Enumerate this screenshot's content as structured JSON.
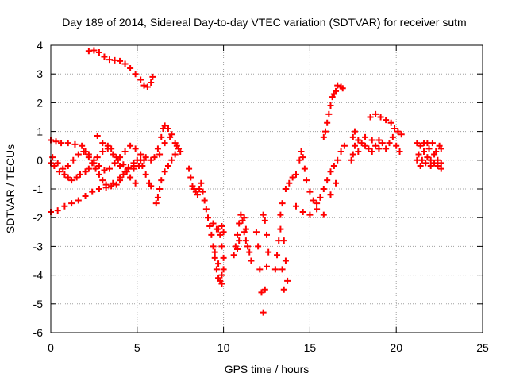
{
  "chart_data": {
    "type": "scatter",
    "title": "Day 189 of 2014, Sidereal Day-to-day VTEC variation (SDTVAR) for receiver sutm",
    "xlabel": "GPS time / hours",
    "ylabel": "SDTVAR / TECUs",
    "xlim": [
      0,
      25
    ],
    "ylim": [
      -6,
      4
    ],
    "xticks": [
      "0",
      "5",
      "10",
      "15",
      "20",
      "25"
    ],
    "yticks": [
      "-6",
      "-5",
      "-4",
      "-3",
      "-2",
      "-1",
      "0",
      "1",
      "2",
      "3",
      "4"
    ],
    "grid": true,
    "marker": "plus",
    "color": "#ff0000",
    "series": [
      {
        "name": "",
        "points": [
          [
            0.0,
            -0.1
          ],
          [
            0.2,
            -0.2
          ],
          [
            0.5,
            -0.4
          ],
          [
            0.8,
            -0.5
          ],
          [
            1.0,
            -0.6
          ],
          [
            1.2,
            -0.7
          ],
          [
            1.5,
            -0.6
          ],
          [
            1.7,
            -0.5
          ],
          [
            2.0,
            -0.4
          ],
          [
            2.2,
            -0.3
          ],
          [
            2.5,
            -0.1
          ],
          [
            2.7,
            0.1
          ],
          [
            3.0,
            0.3
          ],
          [
            3.3,
            0.5
          ],
          [
            3.5,
            0.4
          ],
          [
            3.8,
            0.1
          ],
          [
            4.0,
            -0.2
          ],
          [
            4.3,
            -0.4
          ],
          [
            4.6,
            -0.6
          ],
          [
            4.9,
            -0.8
          ]
        ]
      },
      {
        "name": "",
        "points": [
          [
            0.0,
            0.7
          ],
          [
            0.3,
            0.65
          ],
          [
            0.6,
            0.6
          ],
          [
            1.0,
            0.6
          ],
          [
            1.4,
            0.55
          ],
          [
            1.8,
            0.5
          ],
          [
            2.0,
            0.3
          ],
          [
            2.2,
            0.1
          ],
          [
            2.4,
            -0.1
          ],
          [
            2.6,
            -0.3
          ],
          [
            2.8,
            -0.5
          ],
          [
            3.0,
            -0.7
          ],
          [
            3.2,
            -0.85
          ],
          [
            3.5,
            -0.9
          ],
          [
            3.8,
            -0.85
          ],
          [
            4.0,
            -0.7
          ],
          [
            4.2,
            -0.5
          ],
          [
            4.5,
            -0.3
          ],
          [
            4.8,
            -0.1
          ],
          [
            5.0,
            0.0
          ],
          [
            5.3,
            -0.2
          ],
          [
            5.5,
            -0.5
          ],
          [
            5.7,
            -0.8
          ],
          [
            5.8,
            -0.9
          ]
        ]
      },
      {
        "name": "",
        "points": [
          [
            0.0,
            -1.8
          ],
          [
            0.4,
            -1.75
          ],
          [
            0.8,
            -1.6
          ],
          [
            1.2,
            -1.5
          ],
          [
            1.6,
            -1.4
          ],
          [
            2.0,
            -1.25
          ],
          [
            2.4,
            -1.1
          ],
          [
            2.8,
            -1.0
          ],
          [
            3.2,
            -0.95
          ],
          [
            3.6,
            -0.8
          ],
          [
            4.0,
            -0.6
          ],
          [
            4.4,
            -0.4
          ],
          [
            4.8,
            -0.2
          ],
          [
            5.2,
            0.0
          ],
          [
            5.5,
            0.1
          ],
          [
            5.8,
            0.0
          ]
        ]
      },
      {
        "name": "",
        "points": [
          [
            0.1,
            0.1
          ],
          [
            0.4,
            -0.1
          ],
          [
            0.7,
            -0.3
          ],
          [
            1.0,
            -0.2
          ],
          [
            1.3,
            0.0
          ],
          [
            1.6,
            0.2
          ],
          [
            1.9,
            0.3
          ],
          [
            2.2,
            0.2
          ],
          [
            2.5,
            0.0
          ],
          [
            2.8,
            -0.2
          ],
          [
            3.1,
            -0.35
          ],
          [
            3.4,
            -0.3
          ],
          [
            3.7,
            -0.1
          ],
          [
            4.0,
            0.1
          ],
          [
            4.3,
            0.3
          ],
          [
            4.6,
            0.5
          ],
          [
            4.9,
            0.4
          ],
          [
            5.2,
            0.2
          ]
        ]
      },
      {
        "name": "",
        "points": [
          [
            2.7,
            0.85
          ],
          [
            3.0,
            0.6
          ],
          [
            3.3,
            0.4
          ],
          [
            3.6,
            0.2
          ],
          [
            3.9,
            0.0
          ],
          [
            4.2,
            -0.15
          ],
          [
            4.5,
            -0.25
          ],
          [
            4.8,
            -0.3
          ],
          [
            5.1,
            -0.2
          ],
          [
            5.4,
            0.0
          ]
        ]
      },
      {
        "name": "",
        "points": [
          [
            2.2,
            3.8
          ],
          [
            2.5,
            3.82
          ],
          [
            2.8,
            3.75
          ],
          [
            3.1,
            3.6
          ],
          [
            3.4,
            3.5
          ],
          [
            3.7,
            3.48
          ],
          [
            4.0,
            3.45
          ],
          [
            4.3,
            3.35
          ],
          [
            4.6,
            3.2
          ],
          [
            4.9,
            3.0
          ],
          [
            5.2,
            2.8
          ],
          [
            5.4,
            2.6
          ],
          [
            5.6,
            2.55
          ],
          [
            5.8,
            2.7
          ],
          [
            5.9,
            2.9
          ]
        ]
      },
      {
        "name": "",
        "points": [
          [
            6.0,
            0.1
          ],
          [
            6.2,
            0.4
          ],
          [
            6.4,
            0.8
          ],
          [
            6.5,
            1.1
          ],
          [
            6.6,
            1.2
          ],
          [
            6.8,
            1.1
          ],
          [
            7.0,
            0.9
          ],
          [
            7.2,
            0.6
          ],
          [
            7.4,
            0.4
          ],
          [
            7.2,
            0.2
          ],
          [
            7.0,
            0.0
          ],
          [
            6.8,
            -0.2
          ],
          [
            6.6,
            -0.4
          ],
          [
            6.4,
            -0.7
          ],
          [
            6.3,
            -1.0
          ],
          [
            6.2,
            -1.3
          ],
          [
            6.1,
            -1.5
          ],
          [
            6.3,
            0.2
          ],
          [
            6.6,
            0.6
          ],
          [
            6.9,
            0.8
          ],
          [
            7.3,
            0.5
          ],
          [
            7.5,
            0.3
          ]
        ]
      },
      {
        "name": "",
        "points": [
          [
            8.0,
            -0.3
          ],
          [
            8.1,
            -0.6
          ],
          [
            8.2,
            -0.9
          ],
          [
            8.3,
            -1.0
          ],
          [
            8.4,
            -1.1
          ],
          [
            8.5,
            -1.2
          ],
          [
            8.6,
            -1.0
          ],
          [
            8.7,
            -0.8
          ],
          [
            8.8,
            -1.1
          ],
          [
            8.9,
            -1.4
          ],
          [
            9.0,
            -1.7
          ],
          [
            9.1,
            -2.0
          ],
          [
            9.2,
            -2.3
          ],
          [
            9.3,
            -2.6
          ],
          [
            9.4,
            -3.0
          ],
          [
            9.5,
            -3.4
          ],
          [
            9.6,
            -3.8
          ],
          [
            9.7,
            -4.1
          ],
          [
            9.8,
            -4.2
          ],
          [
            9.9,
            -4.0
          ],
          [
            10.0,
            -3.8
          ],
          [
            10.0,
            -3.4
          ],
          [
            9.9,
            -3.0
          ],
          [
            9.8,
            -2.6
          ],
          [
            9.7,
            -2.4
          ],
          [
            9.9,
            -2.3
          ],
          [
            10.0,
            -2.5
          ],
          [
            9.6,
            -2.4
          ],
          [
            9.4,
            -2.2
          ],
          [
            9.5,
            -3.2
          ],
          [
            9.7,
            -3.6
          ],
          [
            9.9,
            -4.3
          ]
        ]
      },
      {
        "name": "",
        "points": [
          [
            10.6,
            -3.3
          ],
          [
            10.7,
            -3.0
          ],
          [
            10.8,
            -2.6
          ],
          [
            10.9,
            -2.2
          ],
          [
            11.0,
            -1.9
          ],
          [
            11.1,
            -2.1
          ],
          [
            11.2,
            -2.5
          ],
          [
            11.3,
            -2.8
          ],
          [
            11.4,
            -3.0
          ],
          [
            11.5,
            -3.2
          ],
          [
            11.6,
            -3.5
          ],
          [
            11.3,
            -2.4
          ],
          [
            11.2,
            -2.0
          ],
          [
            10.9,
            -2.8
          ],
          [
            10.8,
            -3.1
          ]
        ]
      },
      {
        "name": "",
        "points": [
          [
            11.9,
            -2.5
          ],
          [
            12.0,
            -3.0
          ],
          [
            12.1,
            -3.8
          ],
          [
            12.2,
            -4.6
          ],
          [
            12.3,
            -5.3
          ],
          [
            12.4,
            -4.5
          ],
          [
            12.5,
            -3.7
          ],
          [
            12.6,
            -3.2
          ],
          [
            12.5,
            -2.6
          ],
          [
            12.4,
            -2.1
          ],
          [
            12.3,
            -1.9
          ]
        ]
      },
      {
        "name": "",
        "points": [
          [
            13.0,
            -3.8
          ],
          [
            13.1,
            -3.3
          ],
          [
            13.2,
            -2.8
          ],
          [
            13.3,
            -2.4
          ],
          [
            13.5,
            -2.8
          ],
          [
            13.6,
            -3.5
          ],
          [
            13.7,
            -4.2
          ],
          [
            13.5,
            -4.5
          ],
          [
            13.4,
            -3.8
          ]
        ]
      },
      {
        "name": "",
        "points": [
          [
            13.3,
            -1.9
          ],
          [
            13.4,
            -1.5
          ],
          [
            13.6,
            -1.0
          ],
          [
            13.8,
            -0.8
          ],
          [
            14.0,
            -0.6
          ],
          [
            14.2,
            -0.5
          ],
          [
            14.4,
            0.0
          ],
          [
            14.5,
            0.3
          ],
          [
            14.6,
            0.1
          ],
          [
            14.7,
            -0.3
          ],
          [
            14.8,
            -0.7
          ],
          [
            15.0,
            -1.1
          ],
          [
            15.2,
            -1.4
          ],
          [
            15.4,
            -1.5
          ],
          [
            15.6,
            -1.3
          ],
          [
            15.8,
            -1.0
          ],
          [
            16.0,
            -0.7
          ],
          [
            16.2,
            -0.4
          ],
          [
            16.4,
            -0.2
          ],
          [
            16.6,
            0.0
          ],
          [
            16.8,
            0.3
          ],
          [
            17.0,
            0.5
          ],
          [
            14.2,
            -1.6
          ],
          [
            14.6,
            -1.8
          ],
          [
            15.0,
            -1.9
          ],
          [
            15.4,
            -1.7
          ],
          [
            15.8,
            -1.9
          ],
          [
            16.2,
            -1.2
          ],
          [
            16.5,
            -0.8
          ]
        ]
      },
      {
        "name": "",
        "points": [
          [
            15.8,
            0.8
          ],
          [
            15.9,
            1.0
          ],
          [
            16.0,
            1.3
          ],
          [
            16.1,
            1.6
          ],
          [
            16.2,
            1.9
          ],
          [
            16.3,
            2.2
          ],
          [
            16.4,
            2.3
          ],
          [
            16.5,
            2.4
          ],
          [
            16.6,
            2.6
          ],
          [
            16.8,
            2.55
          ],
          [
            16.9,
            2.5
          ]
        ]
      },
      {
        "name": "",
        "points": [
          [
            17.4,
            0.0
          ],
          [
            17.5,
            0.2
          ],
          [
            17.6,
            0.5
          ],
          [
            17.5,
            0.8
          ],
          [
            17.6,
            1.0
          ],
          [
            17.8,
            0.7
          ],
          [
            18.0,
            0.6
          ],
          [
            18.2,
            0.5
          ],
          [
            18.4,
            0.4
          ],
          [
            18.6,
            0.3
          ],
          [
            18.8,
            0.5
          ],
          [
            19.0,
            0.7
          ],
          [
            19.2,
            0.6
          ],
          [
            19.4,
            0.4
          ],
          [
            19.6,
            0.6
          ],
          [
            19.8,
            0.8
          ],
          [
            20.0,
            0.5
          ],
          [
            20.2,
            0.3
          ],
          [
            17.8,
            0.3
          ],
          [
            18.2,
            0.8
          ],
          [
            18.6,
            0.7
          ],
          [
            19.0,
            0.4
          ]
        ]
      },
      {
        "name": "",
        "points": [
          [
            18.5,
            1.5
          ],
          [
            18.8,
            1.6
          ],
          [
            19.1,
            1.5
          ],
          [
            19.4,
            1.4
          ],
          [
            19.7,
            1.3
          ],
          [
            19.9,
            1.1
          ],
          [
            20.1,
            1.0
          ],
          [
            20.3,
            0.9
          ]
        ]
      },
      {
        "name": "",
        "points": [
          [
            21.2,
            0.6
          ],
          [
            21.4,
            0.5
          ],
          [
            21.6,
            0.3
          ],
          [
            21.8,
            0.1
          ],
          [
            22.0,
            0.0
          ],
          [
            22.2,
            -0.1
          ],
          [
            22.4,
            -0.2
          ],
          [
            22.6,
            -0.1
          ],
          [
            21.3,
            0.2
          ],
          [
            21.5,
            0.0
          ],
          [
            21.7,
            -0.1
          ],
          [
            21.9,
            0.4
          ],
          [
            22.1,
            0.6
          ],
          [
            22.3,
            0.3
          ],
          [
            22.5,
            0.5
          ],
          [
            21.4,
            -0.2
          ],
          [
            21.8,
            0.6
          ],
          [
            22.2,
            0.2
          ],
          [
            22.6,
            0.4
          ],
          [
            21.6,
            0.6
          ],
          [
            22.0,
            -0.2
          ],
          [
            22.4,
            0.0
          ],
          [
            21.2,
            0.0
          ],
          [
            22.6,
            -0.3
          ]
        ]
      }
    ]
  }
}
